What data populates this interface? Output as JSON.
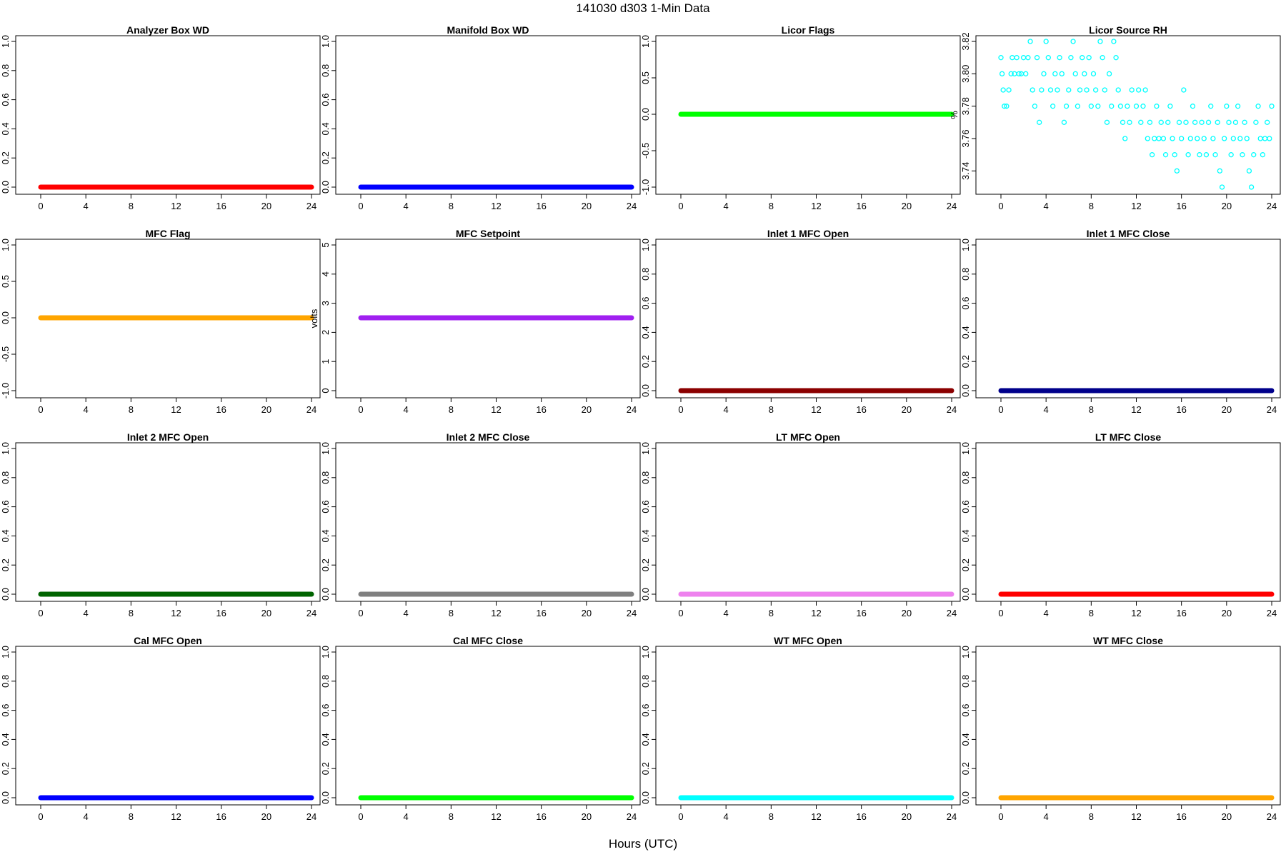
{
  "page": {
    "title": "141030   d303   1-Min Data",
    "xlabel": "Hours (UTC)"
  },
  "chart_data": [
    {
      "type": "line",
      "title": "Analyzer Box WD",
      "ylabel": "",
      "xlim": [
        0,
        24
      ],
      "ylim": [
        0,
        1
      ],
      "x_ticks": [
        0,
        4,
        8,
        12,
        16,
        20,
        24
      ],
      "y_ticks": [
        "0.0",
        "0.2",
        "0.4",
        "0.6",
        "0.8",
        "1.0"
      ],
      "color": "#ff0000",
      "series": [
        {
          "x": [
            0,
            24
          ],
          "values": [
            0,
            0
          ]
        }
      ]
    },
    {
      "type": "line",
      "title": "Manifold Box WD",
      "ylabel": "",
      "xlim": [
        0,
        24
      ],
      "ylim": [
        0,
        1
      ],
      "x_ticks": [
        0,
        4,
        8,
        12,
        16,
        20,
        24
      ],
      "y_ticks": [
        "0.0",
        "0.2",
        "0.4",
        "0.6",
        "0.8",
        "1.0"
      ],
      "color": "#0000ff",
      "series": [
        {
          "x": [
            0,
            24
          ],
          "values": [
            0,
            0
          ]
        }
      ]
    },
    {
      "type": "line",
      "title": "Licor Flags",
      "ylabel": "",
      "xlim": [
        0,
        24
      ],
      "ylim": [
        -1,
        1
      ],
      "x_ticks": [
        0,
        4,
        8,
        12,
        16,
        20,
        24
      ],
      "y_ticks": [
        "-1.0",
        "-0.5",
        "0.0",
        "0.5",
        "1.0"
      ],
      "color": "#00ff00",
      "series": [
        {
          "x": [
            0,
            24
          ],
          "values": [
            0,
            0
          ]
        }
      ]
    },
    {
      "type": "scatter",
      "title": "Licor Source RH",
      "ylabel": "%",
      "xlim": [
        0,
        24
      ],
      "ylim": [
        3.73,
        3.82
      ],
      "x_ticks": [
        0,
        4,
        8,
        12,
        16,
        20,
        24
      ],
      "y_ticks": [
        "3.74",
        "3.76",
        "3.78",
        "3.80",
        "3.82"
      ],
      "color": "#00ffff",
      "points": [
        [
          0,
          3.81
        ],
        [
          0.1,
          3.8
        ],
        [
          0.2,
          3.79
        ],
        [
          0.3,
          3.78
        ],
        [
          0.5,
          3.78
        ],
        [
          0.7,
          3.79
        ],
        [
          0.9,
          3.8
        ],
        [
          1.0,
          3.81
        ],
        [
          1.2,
          3.8
        ],
        [
          1.4,
          3.81
        ],
        [
          1.6,
          3.8
        ],
        [
          1.8,
          3.8
        ],
        [
          2.0,
          3.81
        ],
        [
          2.2,
          3.8
        ],
        [
          2.4,
          3.81
        ],
        [
          2.6,
          3.82
        ],
        [
          2.8,
          3.79
        ],
        [
          3.0,
          3.78
        ],
        [
          3.2,
          3.81
        ],
        [
          3.4,
          3.77
        ],
        [
          3.6,
          3.79
        ],
        [
          3.8,
          3.8
        ],
        [
          4.0,
          3.82
        ],
        [
          4.2,
          3.81
        ],
        [
          4.4,
          3.79
        ],
        [
          4.6,
          3.78
        ],
        [
          4.8,
          3.8
        ],
        [
          5.0,
          3.79
        ],
        [
          5.2,
          3.81
        ],
        [
          5.4,
          3.8
        ],
        [
          5.6,
          3.77
        ],
        [
          5.8,
          3.78
        ],
        [
          6.0,
          3.79
        ],
        [
          6.2,
          3.81
        ],
        [
          6.4,
          3.82
        ],
        [
          6.6,
          3.8
        ],
        [
          6.8,
          3.78
        ],
        [
          7.0,
          3.79
        ],
        [
          7.2,
          3.81
        ],
        [
          7.4,
          3.8
        ],
        [
          7.6,
          3.79
        ],
        [
          7.8,
          3.81
        ],
        [
          8.0,
          3.78
        ],
        [
          8.2,
          3.8
        ],
        [
          8.4,
          3.79
        ],
        [
          8.6,
          3.78
        ],
        [
          8.8,
          3.82
        ],
        [
          9.0,
          3.81
        ],
        [
          9.2,
          3.79
        ],
        [
          9.4,
          3.77
        ],
        [
          9.6,
          3.8
        ],
        [
          9.8,
          3.78
        ],
        [
          10.0,
          3.82
        ],
        [
          10.2,
          3.81
        ],
        [
          10.4,
          3.79
        ],
        [
          10.6,
          3.78
        ],
        [
          10.8,
          3.77
        ],
        [
          11.0,
          3.76
        ],
        [
          11.2,
          3.78
        ],
        [
          11.4,
          3.77
        ],
        [
          11.6,
          3.79
        ],
        [
          12.0,
          3.78
        ],
        [
          12.2,
          3.79
        ],
        [
          12.4,
          3.77
        ],
        [
          12.6,
          3.78
        ],
        [
          12.8,
          3.79
        ],
        [
          13.0,
          3.76
        ],
        [
          13.2,
          3.77
        ],
        [
          13.4,
          3.75
        ],
        [
          13.6,
          3.76
        ],
        [
          13.8,
          3.78
        ],
        [
          14.0,
          3.76
        ],
        [
          14.2,
          3.77
        ],
        [
          14.4,
          3.76
        ],
        [
          14.6,
          3.75
        ],
        [
          14.8,
          3.77
        ],
        [
          15.0,
          3.78
        ],
        [
          15.2,
          3.76
        ],
        [
          15.4,
          3.75
        ],
        [
          15.6,
          3.74
        ],
        [
          15.8,
          3.77
        ],
        [
          16.0,
          3.76
        ],
        [
          16.2,
          3.79
        ],
        [
          16.4,
          3.77
        ],
        [
          16.6,
          3.75
        ],
        [
          16.8,
          3.76
        ],
        [
          17.0,
          3.78
        ],
        [
          17.2,
          3.77
        ],
        [
          17.4,
          3.76
        ],
        [
          17.6,
          3.75
        ],
        [
          17.8,
          3.77
        ],
        [
          18.0,
          3.76
        ],
        [
          18.2,
          3.75
        ],
        [
          18.4,
          3.77
        ],
        [
          18.6,
          3.78
        ],
        [
          18.8,
          3.76
        ],
        [
          19.0,
          3.75
        ],
        [
          19.2,
          3.77
        ],
        [
          19.4,
          3.74
        ],
        [
          19.6,
          3.73
        ],
        [
          19.8,
          3.76
        ],
        [
          20.0,
          3.78
        ],
        [
          20.2,
          3.77
        ],
        [
          20.4,
          3.75
        ],
        [
          20.6,
          3.76
        ],
        [
          20.8,
          3.77
        ],
        [
          21.0,
          3.78
        ],
        [
          21.2,
          3.76
        ],
        [
          21.4,
          3.75
        ],
        [
          21.6,
          3.77
        ],
        [
          21.8,
          3.76
        ],
        [
          22.0,
          3.74
        ],
        [
          22.2,
          3.73
        ],
        [
          22.4,
          3.75
        ],
        [
          22.6,
          3.77
        ],
        [
          22.8,
          3.78
        ],
        [
          23.0,
          3.76
        ],
        [
          23.2,
          3.75
        ],
        [
          23.4,
          3.76
        ],
        [
          23.6,
          3.77
        ],
        [
          23.8,
          3.76
        ],
        [
          24.0,
          3.78
        ]
      ]
    },
    {
      "type": "line",
      "title": "MFC Flag",
      "ylabel": "",
      "xlim": [
        0,
        24
      ],
      "ylim": [
        -1,
        1
      ],
      "x_ticks": [
        0,
        4,
        8,
        12,
        16,
        20,
        24
      ],
      "y_ticks": [
        "-1.0",
        "-0.5",
        "0.0",
        "0.5",
        "1.0"
      ],
      "color": "#ffa500",
      "series": [
        {
          "x": [
            0,
            24
          ],
          "values": [
            0,
            0
          ]
        }
      ]
    },
    {
      "type": "line",
      "title": "MFC Setpoint",
      "ylabel": "volts",
      "xlim": [
        0,
        24
      ],
      "ylim": [
        0,
        5
      ],
      "x_ticks": [
        0,
        4,
        8,
        12,
        16,
        20,
        24
      ],
      "y_ticks": [
        "0",
        "1",
        "2",
        "3",
        "4",
        "5"
      ],
      "color": "#a020f0",
      "series": [
        {
          "x": [
            0,
            24
          ],
          "values": [
            2.5,
            2.5
          ]
        }
      ]
    },
    {
      "type": "line",
      "title": "Inlet 1 MFC Open",
      "ylabel": "",
      "xlim": [
        0,
        24
      ],
      "ylim": [
        0,
        1
      ],
      "x_ticks": [
        0,
        4,
        8,
        12,
        16,
        20,
        24
      ],
      "y_ticks": [
        "0.0",
        "0.2",
        "0.4",
        "0.6",
        "0.8",
        "1.0"
      ],
      "color": "#8b0000",
      "series": [
        {
          "x": [
            0,
            24
          ],
          "values": [
            0,
            0
          ]
        }
      ]
    },
    {
      "type": "line",
      "title": "Inlet 1 MFC Close",
      "ylabel": "",
      "xlim": [
        0,
        24
      ],
      "ylim": [
        0,
        1
      ],
      "x_ticks": [
        0,
        4,
        8,
        12,
        16,
        20,
        24
      ],
      "y_ticks": [
        "0.0",
        "0.2",
        "0.4",
        "0.6",
        "0.8",
        "1.0"
      ],
      "color": "#00008b",
      "series": [
        {
          "x": [
            0,
            24
          ],
          "values": [
            0,
            0
          ]
        }
      ]
    },
    {
      "type": "line",
      "title": "Inlet 2 MFC Open",
      "ylabel": "",
      "xlim": [
        0,
        24
      ],
      "ylim": [
        0,
        1
      ],
      "x_ticks": [
        0,
        4,
        8,
        12,
        16,
        20,
        24
      ],
      "y_ticks": [
        "0.0",
        "0.2",
        "0.4",
        "0.6",
        "0.8",
        "1.0"
      ],
      "color": "#006400",
      "series": [
        {
          "x": [
            0,
            24
          ],
          "values": [
            0,
            0
          ]
        }
      ]
    },
    {
      "type": "line",
      "title": "Inlet 2 MFC Close",
      "ylabel": "",
      "xlim": [
        0,
        24
      ],
      "ylim": [
        0,
        1
      ],
      "x_ticks": [
        0,
        4,
        8,
        12,
        16,
        20,
        24
      ],
      "y_ticks": [
        "0.0",
        "0.2",
        "0.4",
        "0.6",
        "0.8",
        "1.0"
      ],
      "color": "#808080",
      "series": [
        {
          "x": [
            0,
            24
          ],
          "values": [
            0,
            0
          ]
        }
      ]
    },
    {
      "type": "line",
      "title": "LT MFC Open",
      "ylabel": "",
      "xlim": [
        0,
        24
      ],
      "ylim": [
        0,
        1
      ],
      "x_ticks": [
        0,
        4,
        8,
        12,
        16,
        20,
        24
      ],
      "y_ticks": [
        "0.0",
        "0.2",
        "0.4",
        "0.6",
        "0.8",
        "1.0"
      ],
      "color": "#ee82ee",
      "series": [
        {
          "x": [
            0,
            24
          ],
          "values": [
            0,
            0
          ]
        }
      ]
    },
    {
      "type": "line",
      "title": "LT MFC Close",
      "ylabel": "",
      "xlim": [
        0,
        24
      ],
      "ylim": [
        0,
        1
      ],
      "x_ticks": [
        0,
        4,
        8,
        12,
        16,
        20,
        24
      ],
      "y_ticks": [
        "0.0",
        "0.2",
        "0.4",
        "0.6",
        "0.8",
        "1.0"
      ],
      "color": "#ff0000",
      "series": [
        {
          "x": [
            0,
            24
          ],
          "values": [
            0,
            0
          ]
        }
      ]
    },
    {
      "type": "line",
      "title": "Cal MFC Open",
      "ylabel": "",
      "xlim": [
        0,
        24
      ],
      "ylim": [
        0,
        1
      ],
      "x_ticks": [
        0,
        4,
        8,
        12,
        16,
        20,
        24
      ],
      "y_ticks": [
        "0.0",
        "0.2",
        "0.4",
        "0.6",
        "0.8",
        "1.0"
      ],
      "color": "#0000ff",
      "series": [
        {
          "x": [
            0,
            24
          ],
          "values": [
            0,
            0
          ]
        }
      ]
    },
    {
      "type": "line",
      "title": "Cal MFC Close",
      "ylabel": "",
      "xlim": [
        0,
        24
      ],
      "ylim": [
        0,
        1
      ],
      "x_ticks": [
        0,
        4,
        8,
        12,
        16,
        20,
        24
      ],
      "y_ticks": [
        "0.0",
        "0.2",
        "0.4",
        "0.6",
        "0.8",
        "1.0"
      ],
      "color": "#00ff00",
      "series": [
        {
          "x": [
            0,
            24
          ],
          "values": [
            0,
            0
          ]
        }
      ]
    },
    {
      "type": "line",
      "title": "WT MFC Open",
      "ylabel": "",
      "xlim": [
        0,
        24
      ],
      "ylim": [
        0,
        1
      ],
      "x_ticks": [
        0,
        4,
        8,
        12,
        16,
        20,
        24
      ],
      "y_ticks": [
        "0.0",
        "0.2",
        "0.4",
        "0.6",
        "0.8",
        "1.0"
      ],
      "color": "#00ffff",
      "series": [
        {
          "x": [
            0,
            24
          ],
          "values": [
            0,
            0
          ]
        }
      ]
    },
    {
      "type": "line",
      "title": "WT MFC Close",
      "ylabel": "",
      "xlim": [
        0,
        24
      ],
      "ylim": [
        0,
        1
      ],
      "x_ticks": [
        0,
        4,
        8,
        12,
        16,
        20,
        24
      ],
      "y_ticks": [
        "0.0",
        "0.2",
        "0.4",
        "0.6",
        "0.8",
        "1.0"
      ],
      "color": "#ffa500",
      "series": [
        {
          "x": [
            0,
            24
          ],
          "values": [
            0,
            0
          ]
        }
      ]
    }
  ]
}
